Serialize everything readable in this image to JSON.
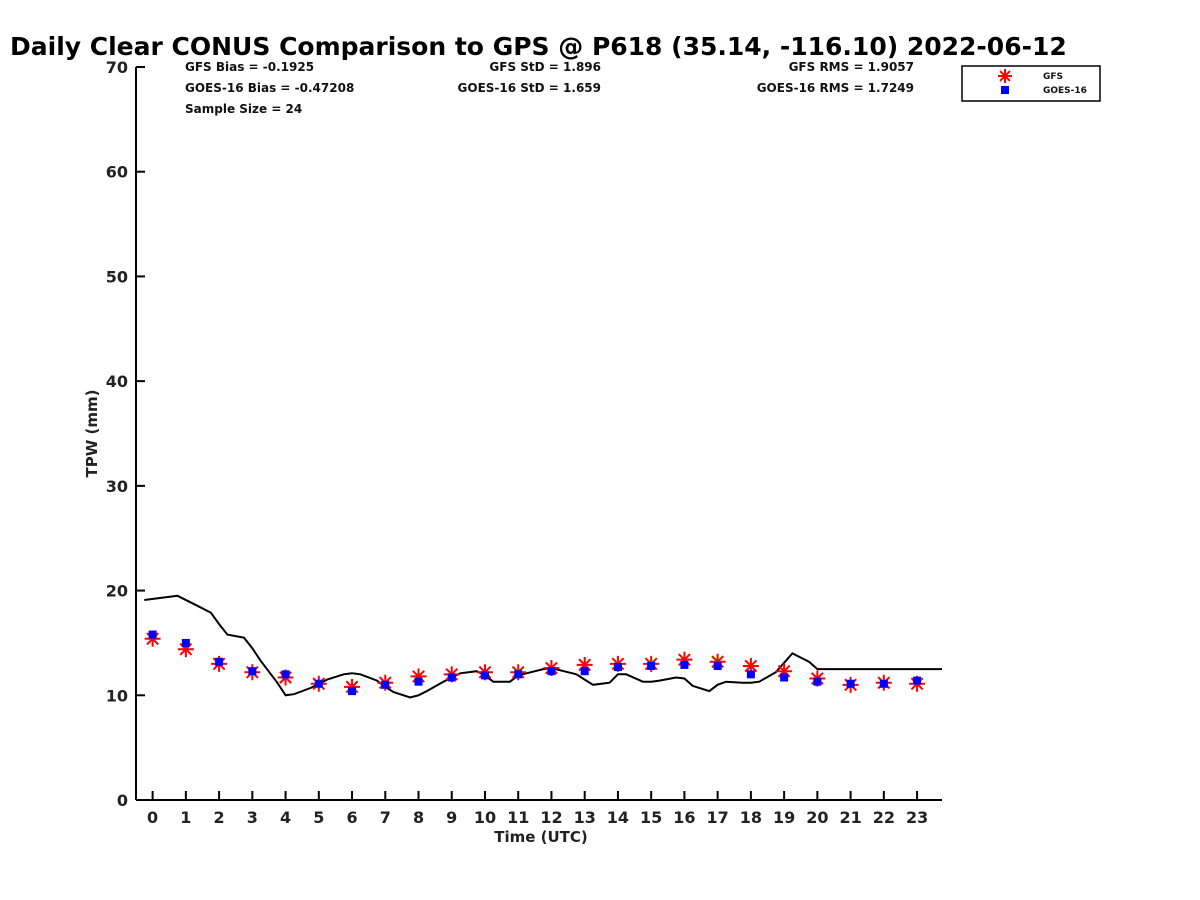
{
  "chart_data": {
    "type": "scatter",
    "title": "Daily Clear CONUS Comparison to GPS @ P618 (35.14, -116.10) 2022-06-12",
    "xlabel": "Time (UTC)",
    "ylabel": "TPW (mm)",
    "xlim": [
      -0.5,
      23.75
    ],
    "ylim": [
      0,
      70
    ],
    "xticks": [
      0,
      1,
      2,
      3,
      4,
      5,
      6,
      7,
      8,
      9,
      10,
      11,
      12,
      13,
      14,
      15,
      16,
      17,
      18,
      19,
      20,
      21,
      22,
      23
    ],
    "yticks": [
      0,
      10,
      20,
      30,
      40,
      50,
      60,
      70
    ],
    "grid": false,
    "legend_position": "top-right",
    "stats": {
      "gfs_bias": "GFS Bias = -0.1925",
      "goes_bias": "GOES-16 Bias = -0.47208",
      "sample_size": "Sample Size = 24",
      "gfs_std": "GFS StD = 1.896",
      "goes_std": "GOES-16 StD = 1.659",
      "gfs_rms": "GFS RMS = 1.9057",
      "goes_rms": "GOES-16 RMS = 1.7249"
    },
    "gps_line": {
      "x": [
        -0.25,
        0.25,
        0.75,
        1.25,
        1.75,
        2.0,
        2.25,
        2.75,
        3.0,
        3.25,
        3.75,
        4.0,
        4.25,
        4.75,
        5.0,
        5.25,
        5.75,
        6.0,
        6.25,
        6.75,
        7.0,
        7.25,
        7.75,
        8.0,
        8.25,
        8.75,
        9.0,
        9.25,
        9.75,
        10.0,
        10.25,
        10.75,
        11.0,
        11.25,
        11.75,
        12.0,
        12.25,
        12.75,
        13.0,
        13.25,
        13.75,
        14.0,
        14.25,
        14.75,
        15.0,
        15.25,
        15.75,
        16.0,
        16.25,
        16.75,
        17.0,
        17.25,
        17.75,
        18.0,
        18.25,
        18.75,
        19.0,
        19.25,
        19.75,
        20.0,
        20.25,
        20.75,
        21.0,
        21.25,
        21.75,
        22.0,
        22.25,
        22.75,
        23.0,
        23.25,
        23.75
      ],
      "y": [
        19.1,
        19.3,
        19.5,
        18.7,
        17.9,
        16.8,
        15.8,
        15.5,
        14.5,
        13.3,
        11.2,
        10.0,
        10.1,
        10.7,
        11.1,
        11.5,
        12.0,
        12.1,
        12.0,
        11.4,
        10.8,
        10.3,
        9.8,
        10.0,
        10.4,
        11.3,
        11.7,
        12.1,
        12.3,
        11.9,
        11.3,
        11.3,
        11.9,
        12.1,
        12.5,
        12.6,
        12.4,
        12.0,
        11.5,
        11.0,
        11.2,
        12.0,
        12.0,
        11.3,
        11.3,
        11.4,
        11.7,
        11.6,
        10.9,
        10.4,
        11.0,
        11.3,
        11.2,
        11.2,
        11.3,
        12.2,
        13.1,
        14.0,
        13.2,
        12.5,
        12.5,
        12.5,
        12.5,
        12.5,
        12.5,
        12.5,
        12.5,
        12.5,
        12.5,
        12.5,
        12.5
      ],
      "color": "#000000"
    },
    "series": [
      {
        "name": "GFS",
        "marker": "asterisk",
        "color": "#ff0000",
        "x": [
          0,
          1,
          2,
          3,
          4,
          5,
          6,
          7,
          8,
          9,
          10,
          11,
          12,
          13,
          14,
          15,
          16,
          17,
          18,
          19,
          20,
          21,
          22,
          23
        ],
        "values": [
          15.4,
          14.4,
          13.0,
          12.2,
          11.7,
          11.1,
          10.8,
          11.2,
          11.8,
          12.0,
          12.2,
          12.2,
          12.6,
          12.9,
          13.0,
          13.0,
          13.4,
          13.2,
          12.8,
          12.3,
          11.6,
          11.0,
          11.2,
          11.1
        ]
      },
      {
        "name": "GOES-16",
        "marker": "square",
        "color": "#0000ff",
        "x": [
          0,
          1,
          2,
          3,
          4,
          5,
          6,
          7,
          8,
          9,
          10,
          11,
          12,
          13,
          14,
          15,
          16,
          17,
          18,
          19,
          20,
          21,
          22,
          23
        ],
        "values": [
          15.8,
          15.0,
          13.2,
          12.3,
          12.0,
          11.1,
          10.4,
          11.0,
          11.3,
          11.7,
          11.9,
          12.0,
          12.3,
          12.3,
          12.7,
          12.8,
          12.9,
          12.8,
          12.0,
          11.7,
          11.3,
          11.1,
          11.1,
          11.4
        ]
      }
    ]
  }
}
